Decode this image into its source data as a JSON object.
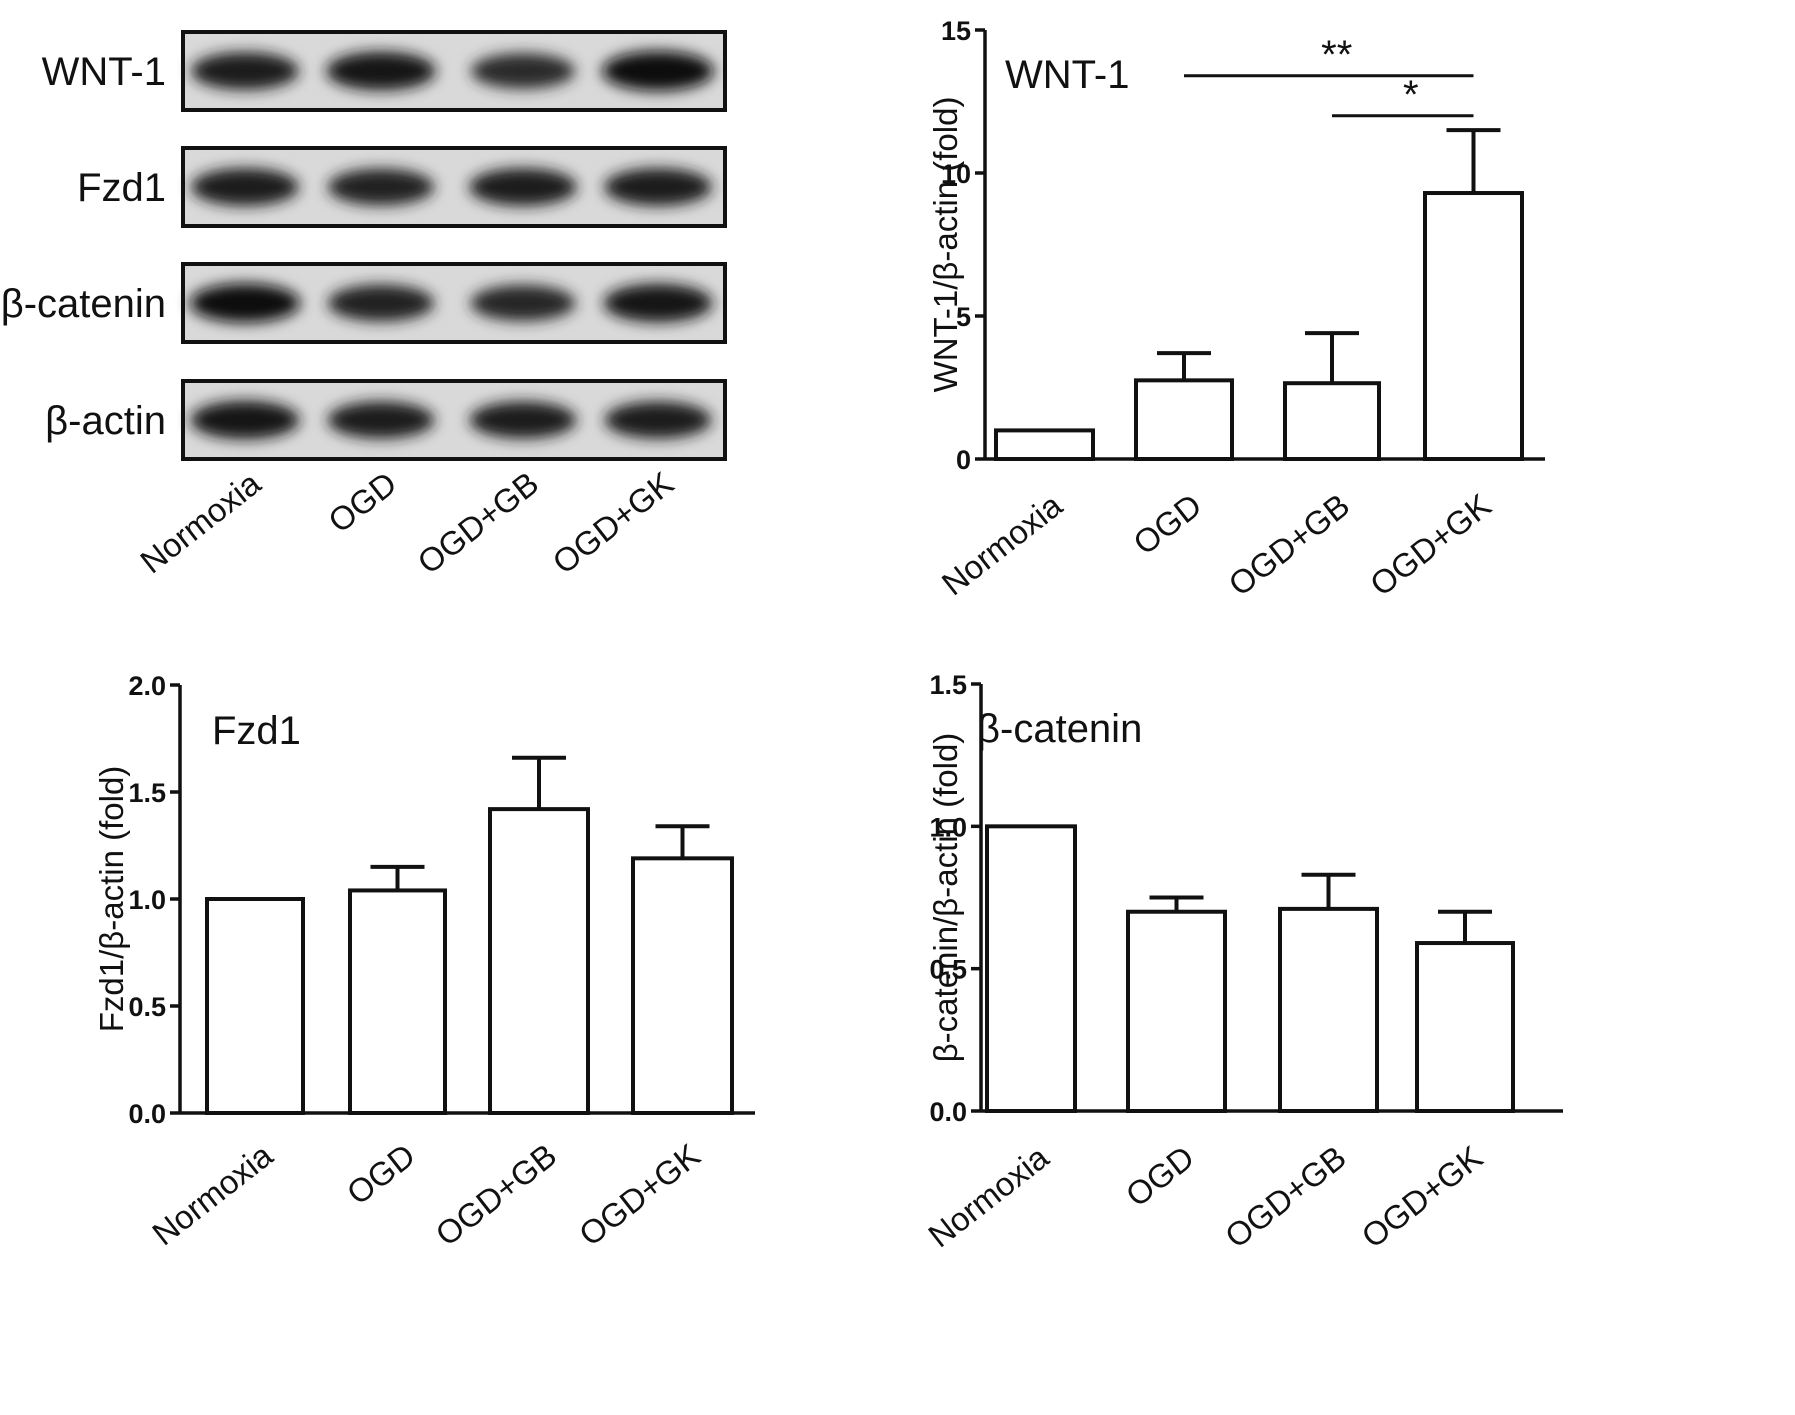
{
  "blot": {
    "bands": [
      {
        "label": "WNT-1",
        "intensity": [
          0.85,
          0.92,
          0.72,
          1.0
        ]
      },
      {
        "label": "Fzd1",
        "intensity": [
          0.85,
          0.8,
          0.85,
          0.85
        ]
      },
      {
        "label": "β-catenin",
        "intensity": [
          0.95,
          0.8,
          0.75,
          0.9
        ]
      },
      {
        "label": "β-actin",
        "intensity": [
          0.9,
          0.82,
          0.82,
          0.82
        ]
      }
    ],
    "lanes": [
      "Normoxia",
      "OGD",
      "OGD+GB",
      "OGD+GK"
    ]
  },
  "chart_data": [
    {
      "type": "bar",
      "title": "WNT-1",
      "ylabel": "WNT-1/β-actin (fold)",
      "categories": [
        "Normoxia",
        "OGD",
        "OGD+GB",
        "OGD+GK"
      ],
      "values": [
        1.0,
        2.75,
        2.65,
        9.3
      ],
      "errors": [
        0,
        0.95,
        1.75,
        2.2
      ],
      "ylim": [
        0,
        15
      ],
      "yticks": [
        0,
        5,
        10,
        15
      ],
      "tick_format": "int",
      "significance": [
        {
          "from": 1,
          "to": 3,
          "label": "**",
          "y": 13.4
        },
        {
          "from": 2,
          "to": 3,
          "label": "*",
          "y": 12.0
        }
      ]
    },
    {
      "type": "bar",
      "title": "Fzd1",
      "ylabel": "Fzd1/β-actin (fold)",
      "categories": [
        "Normoxia",
        "OGD",
        "OGD+GB",
        "OGD+GK"
      ],
      "values": [
        1.0,
        1.04,
        1.42,
        1.19
      ],
      "errors": [
        0,
        0.11,
        0.24,
        0.15
      ],
      "ylim": [
        0,
        2.0
      ],
      "yticks": [
        0.0,
        0.5,
        1.0,
        1.5,
        2.0
      ],
      "tick_format": "1dp",
      "significance": []
    },
    {
      "type": "bar",
      "title": "β-catenin",
      "ylabel": "β-catenin/β-actin (fold)",
      "categories": [
        "Normoxia",
        "OGD",
        "OGD+GB",
        "OGD+GK"
      ],
      "values": [
        1.0,
        0.7,
        0.71,
        0.59
      ],
      "errors": [
        0,
        0.05,
        0.12,
        0.11
      ],
      "ylim": [
        0,
        1.5
      ],
      "yticks": [
        0.0,
        0.5,
        1.0,
        1.5
      ],
      "tick_format": "1dp",
      "significance": []
    }
  ]
}
